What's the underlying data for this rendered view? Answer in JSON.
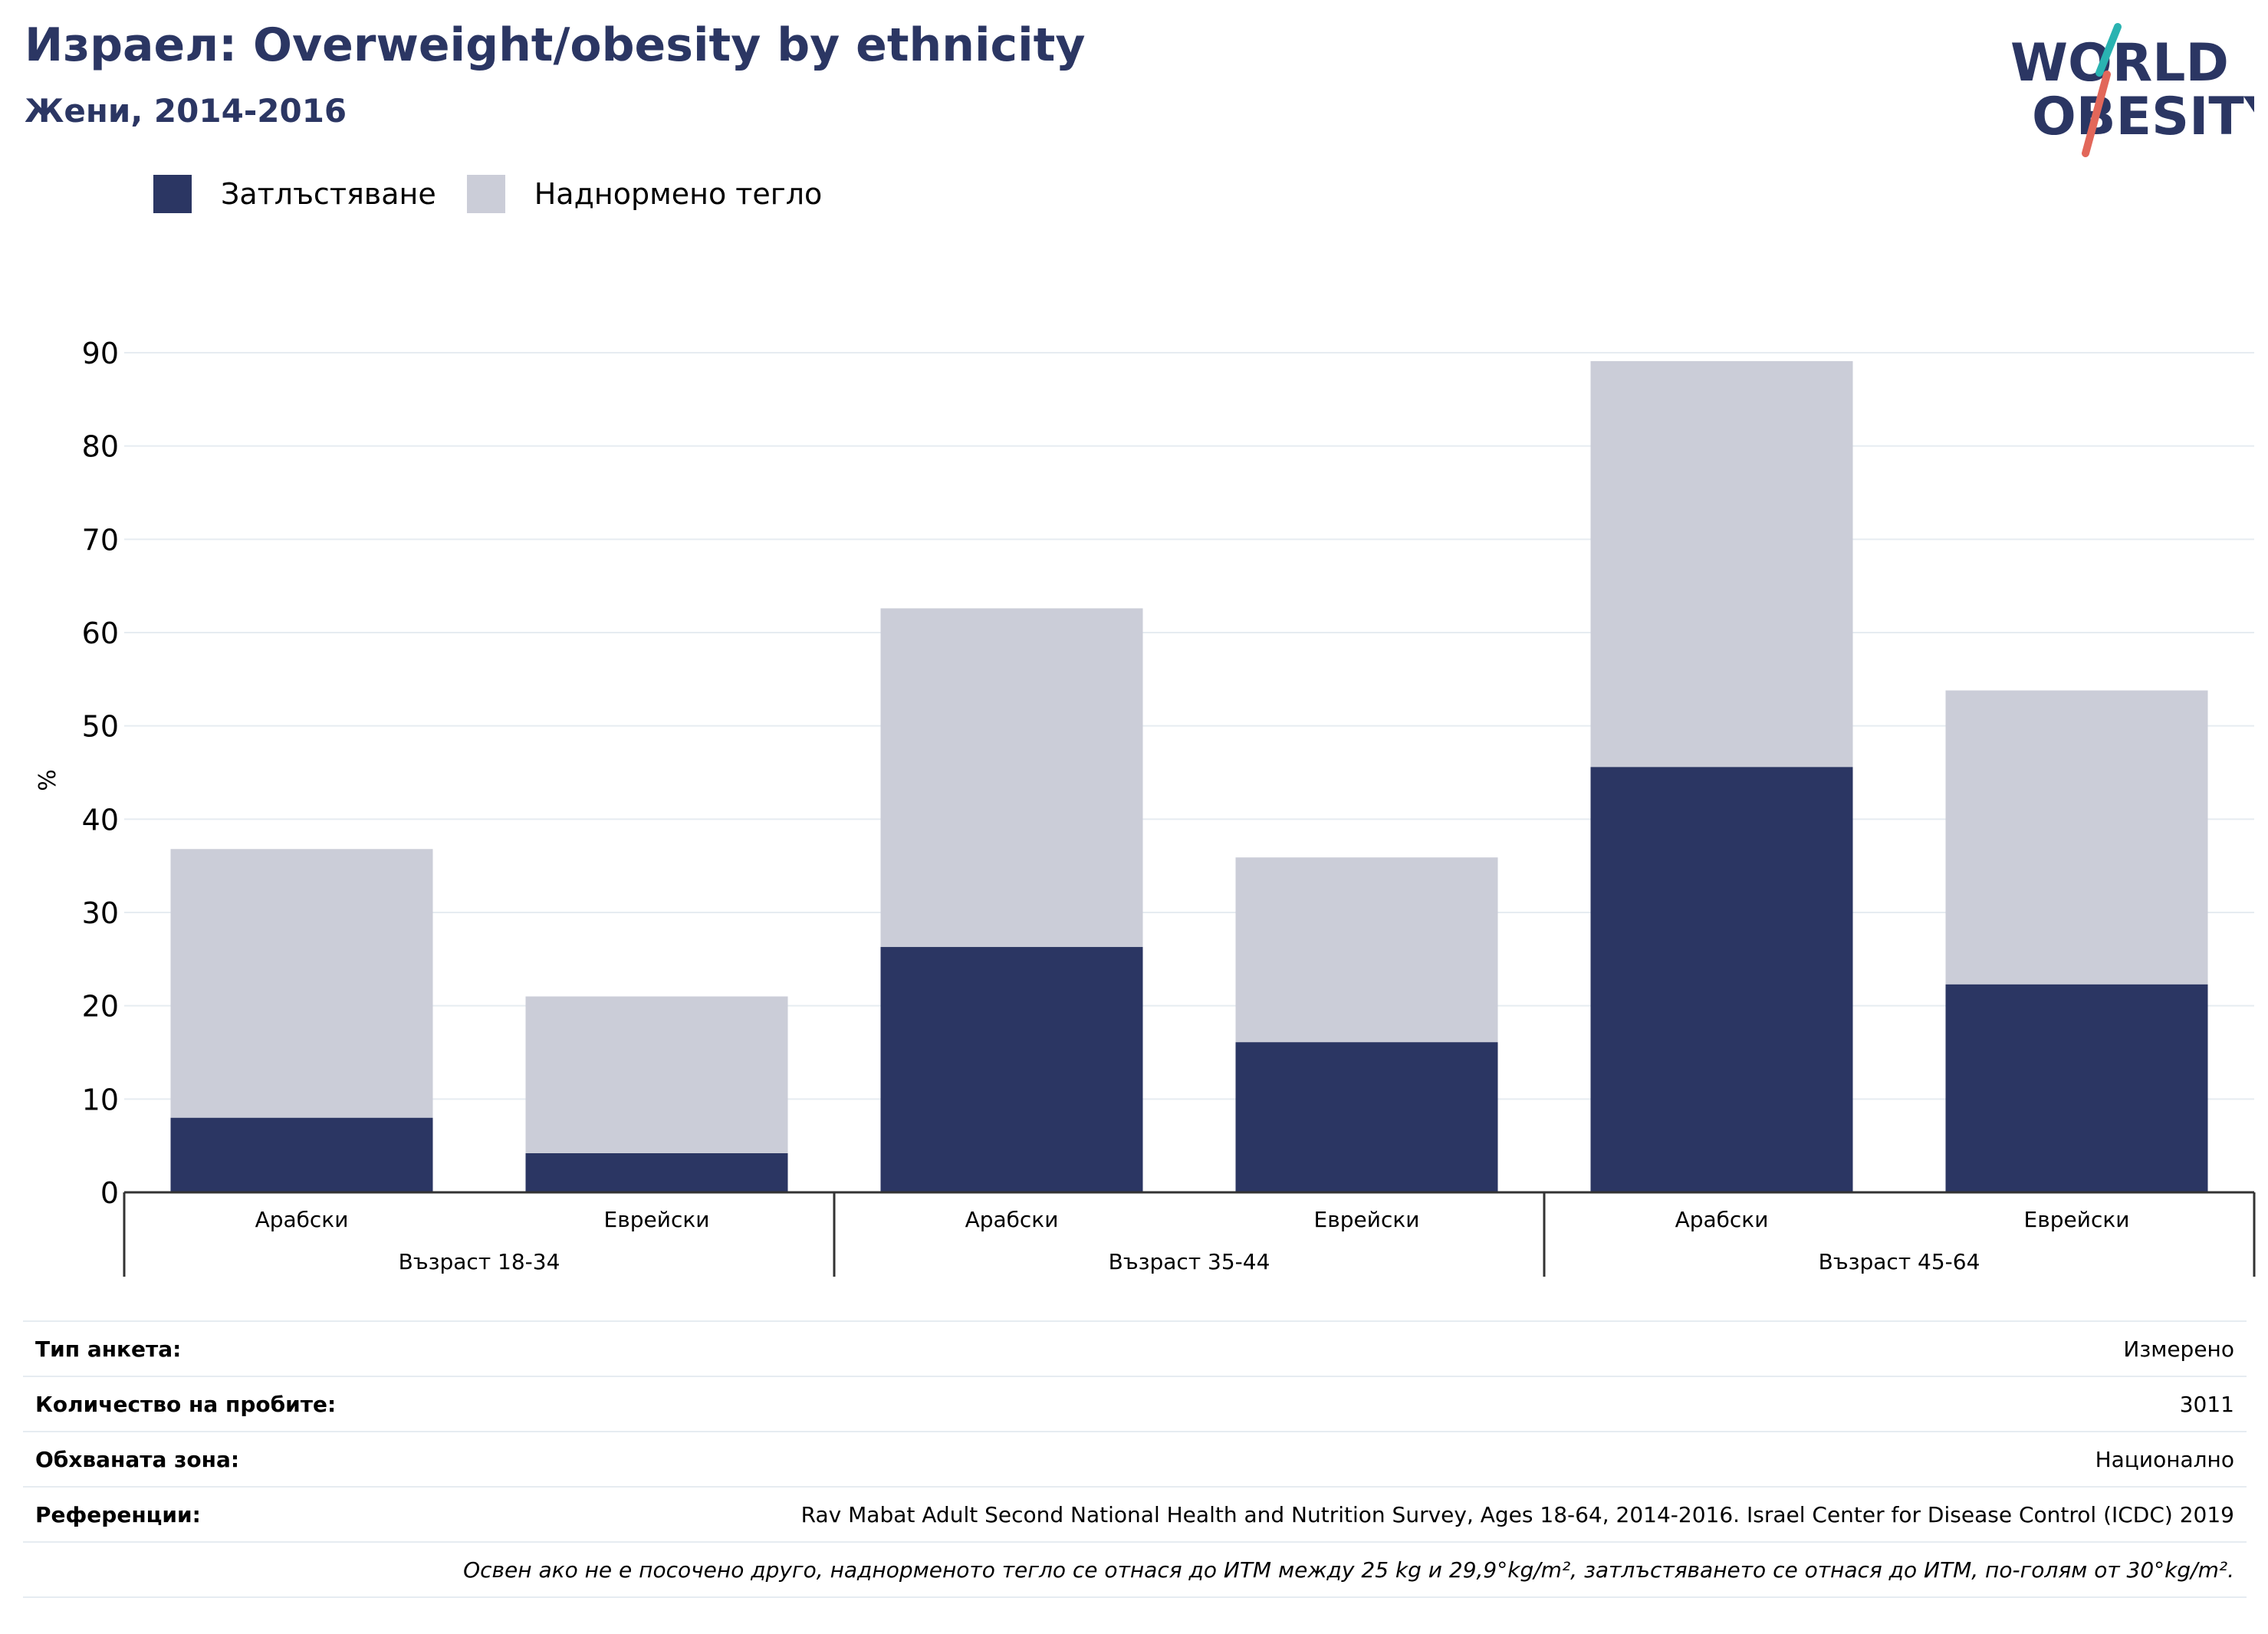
{
  "header": {
    "title": "Израел: Overweight/obesity by ethnicity",
    "subtitle": "Жени, 2014-2016"
  },
  "logo": {
    "line1": "WORLD",
    "line2": "OBESITY",
    "accent_colors": [
      "#2ab3b1",
      "#e2675a"
    ]
  },
  "colors": {
    "obesity": "#2b3663",
    "overweight": "#cbcdd8",
    "title": "#2b3663",
    "grid": "#e6ecf1"
  },
  "legend": {
    "items": [
      {
        "label": "Затлъстяване",
        "color": "#2b3663"
      },
      {
        "label": "Наднормено тегло",
        "color": "#cbcdd8"
      }
    ]
  },
  "chart_data": {
    "type": "bar",
    "stacked": true,
    "ylabel": "%",
    "ylim": [
      0,
      90
    ],
    "yticks": [
      0,
      10,
      20,
      30,
      40,
      50,
      60,
      70,
      80,
      90
    ],
    "grid": true,
    "legend_position": "top-left",
    "groups": [
      "Възраст 18-34",
      "Възраст 35-44",
      "Възраст 45-64"
    ],
    "categories": [
      "Арабски",
      "Еврейски",
      "Арабски",
      "Еврейски",
      "Арабски",
      "Еврейски"
    ],
    "series": [
      {
        "name": "Затлъстяване",
        "values": [
          8.0,
          4.2,
          26.3,
          16.1,
          45.6,
          22.3
        ]
      },
      {
        "name": "Наднормено тегло",
        "values": [
          28.8,
          16.8,
          36.3,
          19.8,
          43.5,
          31.5
        ]
      }
    ]
  },
  "info": {
    "rows": [
      {
        "key": "Тип анкета:",
        "value": "Измерено"
      },
      {
        "key": "Количество на пробите:",
        "value": "3011"
      },
      {
        "key": "Обхваната зона:",
        "value": "Национално"
      },
      {
        "key": "Референции:",
        "value": "Rav Mabat Adult Second National Health and Nutrition Survey, Ages 18-64, 2014-2016. Israel Center for Disease Control (ICDC) 2019"
      }
    ],
    "note": "Освен ако не е посочено друго, наднорменото тегло се отнася до ИТМ между 25 kg и 29,9°kg/m², затлъстяването се отнася до ИТМ, по-голям от 30°kg/m²."
  }
}
